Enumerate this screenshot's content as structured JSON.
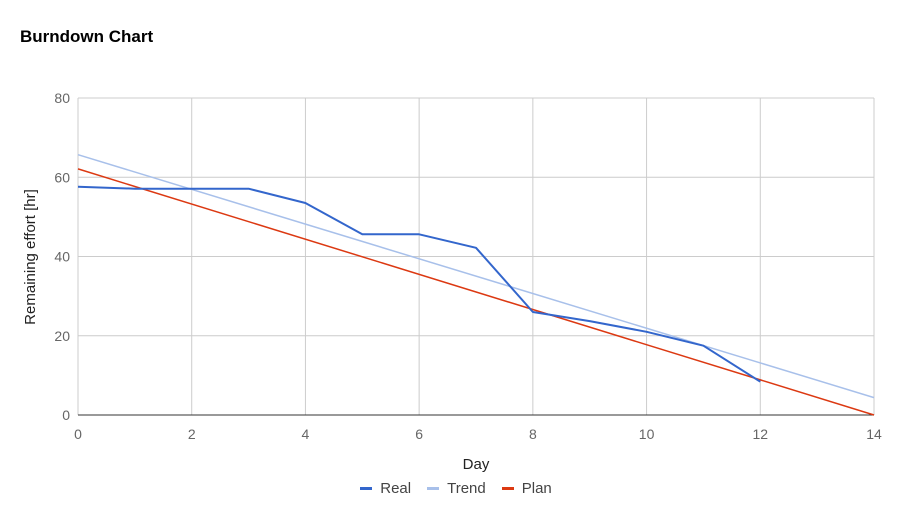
{
  "chart_data": {
    "type": "line",
    "title": "Burndown Chart",
    "xlabel": "Day",
    "ylabel": "Remaining effort [hr]",
    "xlim": [
      0,
      14
    ],
    "ylim": [
      0,
      80
    ],
    "x_ticks": [
      "0",
      "2",
      "4",
      "6",
      "8",
      "10",
      "12",
      "14"
    ],
    "y_ticks": [
      "0",
      "20",
      "40",
      "60",
      "80"
    ],
    "grid": true,
    "legend_position": "bottom",
    "series": [
      {
        "name": "Real",
        "color": "#3366cc",
        "points": [
          [
            0,
            57.6
          ],
          [
            1,
            57.1
          ],
          [
            2,
            57.1
          ],
          [
            3,
            57.1
          ],
          [
            4,
            53.5
          ],
          [
            5,
            45.6
          ],
          [
            6,
            45.6
          ],
          [
            7,
            42.2
          ],
          [
            8,
            26
          ],
          [
            9,
            23.7
          ],
          [
            10,
            21
          ],
          [
            11,
            17.5
          ],
          [
            12,
            8.4
          ]
        ]
      },
      {
        "name": "Trend",
        "color": "#a8c0ea",
        "points": [
          [
            0,
            65.7
          ],
          [
            14,
            4.4
          ]
        ]
      },
      {
        "name": "Plan",
        "color": "#dc3912",
        "points": [
          [
            0,
            62.1
          ],
          [
            14,
            0
          ]
        ]
      }
    ]
  }
}
